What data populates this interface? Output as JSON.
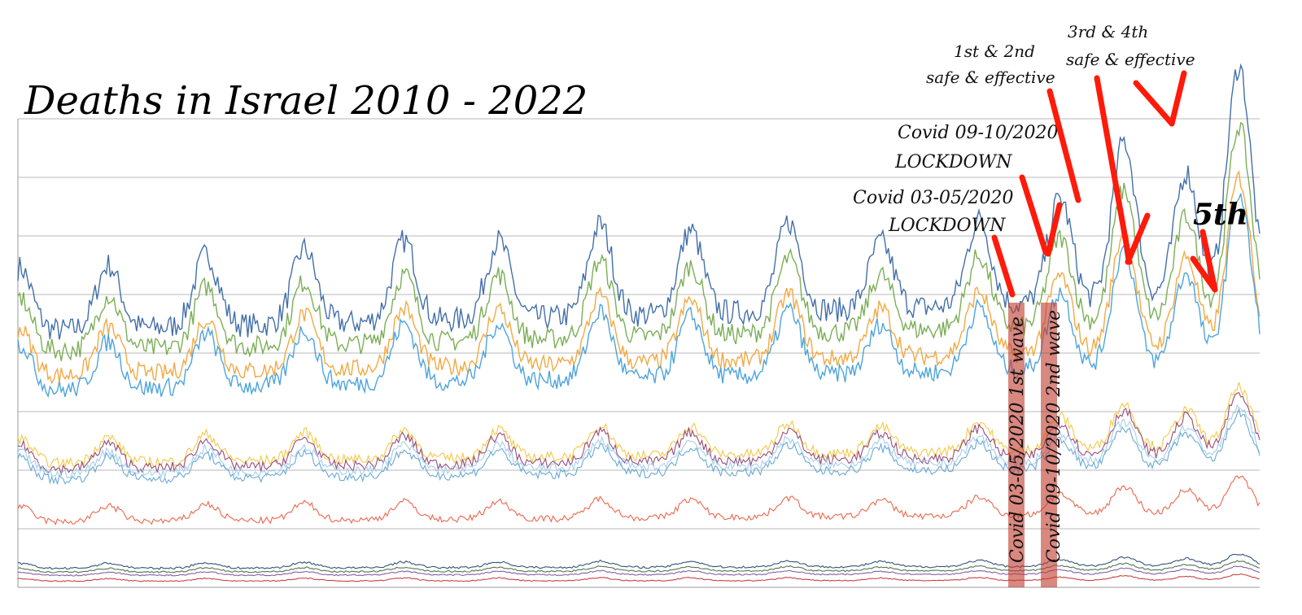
{
  "chart_data": {
    "type": "line",
    "title": "Deaths in Israel 2010 - 2022",
    "xlabel": "",
    "ylabel": "",
    "x_range": [
      "2010",
      "2022"
    ],
    "y_range": [
      0,
      800
    ],
    "grid": true,
    "legend": "none",
    "series_colors": [
      "#2f5fa0",
      "#6da544",
      "#f0a030",
      "#3a9ad9",
      "#f2c233",
      "#8b3a6e",
      "#9cc9e8",
      "#5aa0d0",
      "#e8563a",
      "#1f3f6a",
      "#3a6a3a",
      "#7a4aa0",
      "#c03030"
    ],
    "series_levels": [
      {
        "base": 470,
        "amp": 95
      },
      {
        "base": 430,
        "amp": 80
      },
      {
        "base": 385,
        "amp": 70
      },
      {
        "base": 360,
        "amp": 70
      },
      {
        "base": 225,
        "amp": 40
      },
      {
        "base": 215,
        "amp": 40
      },
      {
        "base": 205,
        "amp": 35
      },
      {
        "base": 195,
        "amp": 35
      },
      {
        "base": 120,
        "amp": 25
      },
      {
        "base": 35,
        "amp": 8
      },
      {
        "base": 28,
        "amp": 6
      },
      {
        "base": 22,
        "amp": 5
      },
      {
        "base": 12,
        "amp": 4
      }
    ],
    "annotations": [
      {
        "id": "lockdown1",
        "lines": [
          "Covid 03-05/2020",
          "LOCKDOWN"
        ]
      },
      {
        "id": "lockdown2",
        "lines": [
          "Covid 09-10/2020",
          "LOCKDOWN"
        ]
      },
      {
        "id": "dose12",
        "lines": [
          "1st & 2nd",
          "safe & effective"
        ]
      },
      {
        "id": "dose34",
        "lines": [
          "3rd & 4th",
          "safe & effective"
        ]
      },
      {
        "id": "dose5",
        "lines": [
          "5th"
        ]
      }
    ],
    "bands": [
      {
        "label": "Covid 03-05/2020 1st wave"
      },
      {
        "label": "Covid 09-10/2020 2nd wave"
      }
    ]
  },
  "colors": {
    "arrow": "#ff1a0a",
    "band": "#c0392b"
  }
}
